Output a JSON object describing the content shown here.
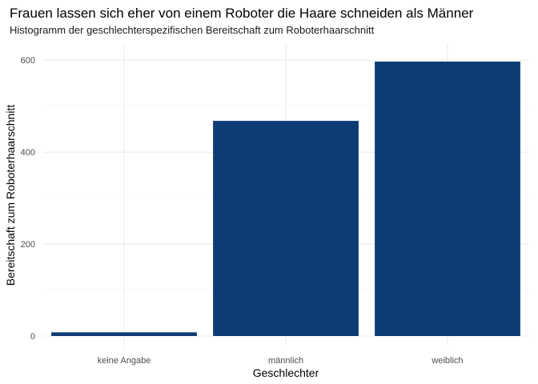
{
  "chart_data": {
    "type": "bar",
    "title": "Frauen lassen sich eher von einem Roboter die Haare schneiden als Männer",
    "subtitle": "Histogramm der geschlechterspezifischen Bereitschaft zum Roboterhaarschnitt",
    "xlabel": "Geschlechter",
    "ylabel": "Bereitschaft zum Roboterhaarschnitt",
    "categories": [
      "keine Angabe",
      "männlich",
      "weiblich"
    ],
    "values": [
      8,
      468,
      597
    ],
    "ylim": [
      0,
      630
    ],
    "yticks": [
      "0",
      "200",
      "400",
      "600"
    ],
    "grid": true,
    "bar_color": "#0d3b76",
    "grid_major_color": "#ebebeb",
    "grid_minor_color": "#f5f5f5"
  }
}
